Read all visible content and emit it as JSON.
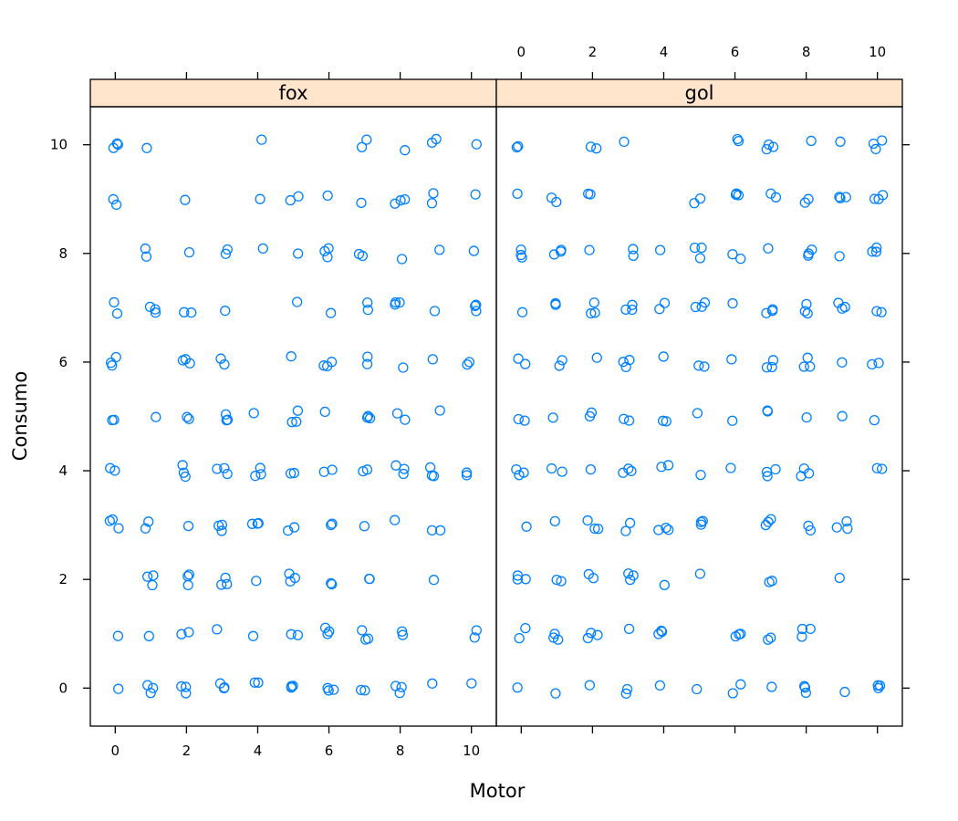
{
  "chart_data": {
    "type": "scatter",
    "xlabel": "Motor",
    "ylabel": "Consumo",
    "xlim": [
      -0.7,
      10.7
    ],
    "ylim": [
      -0.7,
      10.7
    ],
    "x_ticks": [
      0,
      2,
      4,
      6,
      8,
      10
    ],
    "y_ticks": [
      0,
      2,
      4,
      6,
      8,
      10
    ],
    "marker_color": "#0080ff",
    "strip_color": "#ffe5cc",
    "panels": [
      {
        "name": "fox",
        "points": [
          [
            0,
            0
          ],
          [
            0,
            1
          ],
          [
            0,
            3
          ],
          [
            0,
            4
          ],
          [
            0,
            5
          ],
          [
            0,
            6
          ],
          [
            0,
            7
          ],
          [
            0,
            9
          ],
          [
            0,
            10
          ],
          [
            1,
            0
          ],
          [
            1,
            1
          ],
          [
            1,
            2
          ],
          [
            1,
            3
          ],
          [
            1,
            5
          ],
          [
            1,
            7
          ],
          [
            1,
            8
          ],
          [
            1,
            10
          ],
          [
            2,
            0
          ],
          [
            2,
            1
          ],
          [
            2,
            2
          ],
          [
            2,
            3
          ],
          [
            2,
            4
          ],
          [
            2,
            5
          ],
          [
            2,
            6
          ],
          [
            2,
            7
          ],
          [
            2,
            8
          ],
          [
            2,
            9
          ],
          [
            3,
            0
          ],
          [
            3,
            1
          ],
          [
            3,
            2
          ],
          [
            3,
            3
          ],
          [
            3,
            4
          ],
          [
            3,
            5
          ],
          [
            3,
            6
          ],
          [
            3,
            7
          ],
          [
            3,
            8
          ],
          [
            4,
            0
          ],
          [
            4,
            1
          ],
          [
            4,
            2
          ],
          [
            4,
            3
          ],
          [
            4,
            4
          ],
          [
            4,
            5
          ],
          [
            4,
            8
          ],
          [
            4,
            9
          ],
          [
            4,
            10
          ],
          [
            5,
            0
          ],
          [
            5,
            1
          ],
          [
            5,
            2
          ],
          [
            5,
            3
          ],
          [
            5,
            4
          ],
          [
            5,
            5
          ],
          [
            5,
            6
          ],
          [
            5,
            7
          ],
          [
            5,
            8
          ],
          [
            5,
            9
          ],
          [
            6,
            0
          ],
          [
            6,
            1
          ],
          [
            6,
            2
          ],
          [
            6,
            3
          ],
          [
            6,
            4
          ],
          [
            6,
            5
          ],
          [
            6,
            6
          ],
          [
            6,
            7
          ],
          [
            6,
            8
          ],
          [
            6,
            9
          ],
          [
            7,
            0
          ],
          [
            7,
            1
          ],
          [
            7,
            2
          ],
          [
            7,
            3
          ],
          [
            7,
            4
          ],
          [
            7,
            5
          ],
          [
            7,
            6
          ],
          [
            7,
            7
          ],
          [
            7,
            8
          ],
          [
            7,
            9
          ],
          [
            7,
            10
          ],
          [
            8,
            0
          ],
          [
            8,
            1
          ],
          [
            8,
            3
          ],
          [
            8,
            4
          ],
          [
            8,
            5
          ],
          [
            8,
            6
          ],
          [
            8,
            7
          ],
          [
            8,
            8
          ],
          [
            8,
            9
          ],
          [
            8,
            10
          ],
          [
            9,
            0
          ],
          [
            9,
            2
          ],
          [
            9,
            3
          ],
          [
            9,
            4
          ],
          [
            9,
            5
          ],
          [
            9,
            6
          ],
          [
            9,
            7
          ],
          [
            9,
            8
          ],
          [
            9,
            9
          ],
          [
            9,
            10
          ],
          [
            10,
            0
          ],
          [
            10,
            1
          ],
          [
            10,
            4
          ],
          [
            10,
            6
          ],
          [
            10,
            7
          ],
          [
            10,
            8
          ],
          [
            10,
            9
          ],
          [
            10,
            10
          ]
        ]
      },
      {
        "name": "gol",
        "points": [
          [
            0,
            0
          ],
          [
            0,
            1
          ],
          [
            0,
            2
          ],
          [
            0,
            3
          ],
          [
            0,
            4
          ],
          [
            0,
            5
          ],
          [
            0,
            6
          ],
          [
            0,
            7
          ],
          [
            0,
            8
          ],
          [
            0,
            9
          ],
          [
            0,
            10
          ],
          [
            1,
            0
          ],
          [
            1,
            1
          ],
          [
            1,
            2
          ],
          [
            1,
            3
          ],
          [
            1,
            4
          ],
          [
            1,
            5
          ],
          [
            1,
            6
          ],
          [
            1,
            7
          ],
          [
            1,
            8
          ],
          [
            1,
            9
          ],
          [
            2,
            0
          ],
          [
            2,
            1
          ],
          [
            2,
            2
          ],
          [
            2,
            3
          ],
          [
            2,
            4
          ],
          [
            2,
            5
          ],
          [
            2,
            6
          ],
          [
            2,
            7
          ],
          [
            2,
            8
          ],
          [
            2,
            9
          ],
          [
            2,
            10
          ],
          [
            3,
            0
          ],
          [
            3,
            1
          ],
          [
            3,
            2
          ],
          [
            3,
            3
          ],
          [
            3,
            4
          ],
          [
            3,
            5
          ],
          [
            3,
            6
          ],
          [
            3,
            7
          ],
          [
            3,
            8
          ],
          [
            3,
            10
          ],
          [
            4,
            0
          ],
          [
            4,
            1
          ],
          [
            4,
            2
          ],
          [
            4,
            3
          ],
          [
            4,
            4
          ],
          [
            4,
            5
          ],
          [
            4,
            6
          ],
          [
            4,
            7
          ],
          [
            4,
            8
          ],
          [
            5,
            0
          ],
          [
            5,
            2
          ],
          [
            5,
            3
          ],
          [
            5,
            4
          ],
          [
            5,
            5
          ],
          [
            5,
            6
          ],
          [
            5,
            7
          ],
          [
            5,
            8
          ],
          [
            5,
            9
          ],
          [
            6,
            0
          ],
          [
            6,
            1
          ],
          [
            6,
            4
          ],
          [
            6,
            5
          ],
          [
            6,
            6
          ],
          [
            6,
            7
          ],
          [
            6,
            8
          ],
          [
            6,
            9
          ],
          [
            6,
            10
          ],
          [
            7,
            0
          ],
          [
            7,
            1
          ],
          [
            7,
            2
          ],
          [
            7,
            3
          ],
          [
            7,
            4
          ],
          [
            7,
            5
          ],
          [
            7,
            6
          ],
          [
            7,
            7
          ],
          [
            7,
            8
          ],
          [
            7,
            9
          ],
          [
            7,
            10
          ],
          [
            8,
            0
          ],
          [
            8,
            1
          ],
          [
            8,
            3
          ],
          [
            8,
            4
          ],
          [
            8,
            5
          ],
          [
            8,
            6
          ],
          [
            8,
            7
          ],
          [
            8,
            8
          ],
          [
            8,
            9
          ],
          [
            8,
            10
          ],
          [
            9,
            0
          ],
          [
            9,
            2
          ],
          [
            9,
            3
          ],
          [
            9,
            5
          ],
          [
            9,
            6
          ],
          [
            9,
            7
          ],
          [
            9,
            8
          ],
          [
            9,
            9
          ],
          [
            9,
            10
          ],
          [
            10,
            0
          ],
          [
            10,
            4
          ],
          [
            10,
            5
          ],
          [
            10,
            6
          ],
          [
            10,
            7
          ],
          [
            10,
            8
          ],
          [
            10,
            9
          ],
          [
            10,
            10
          ]
        ]
      }
    ]
  }
}
